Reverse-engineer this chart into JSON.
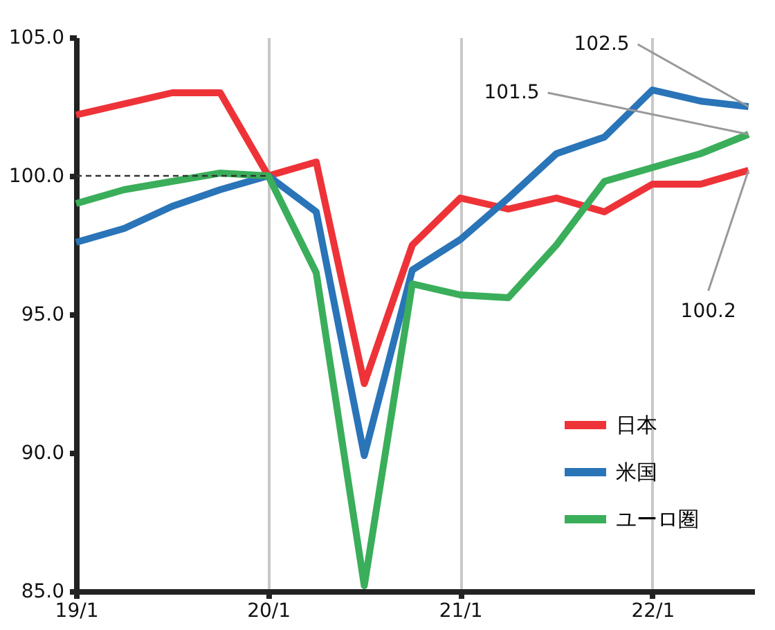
{
  "chart_data": {
    "type": "line",
    "categories": [
      "19/1",
      null,
      null,
      null,
      "20/1",
      null,
      null,
      null,
      "21/1",
      null,
      null,
      null,
      "22/1",
      null,
      null
    ],
    "series": [
      {
        "name": "日本",
        "color": "#ee3338",
        "values": [
          102.2,
          102.6,
          103.0,
          103.0,
          100.0,
          100.5,
          92.5,
          97.5,
          99.2,
          98.8,
          99.2,
          98.7,
          99.7,
          99.7,
          100.2
        ],
        "value_labels": [
          null,
          null,
          null,
          null,
          null,
          null,
          null,
          null,
          null,
          null,
          null,
          null,
          null,
          null,
          "100.2"
        ]
      },
      {
        "name": "米国",
        "color": "#2a74b8",
        "values": [
          97.6,
          98.1,
          98.9,
          99.5,
          100.0,
          98.7,
          89.9,
          96.6,
          97.7,
          99.2,
          100.8,
          101.4,
          103.1,
          102.7,
          102.5
        ],
        "value_labels": [
          null,
          null,
          null,
          null,
          null,
          null,
          null,
          null,
          null,
          null,
          null,
          null,
          null,
          null,
          "102.5"
        ]
      },
      {
        "name": "ユーロ圏",
        "color": "#3aae5a",
        "values": [
          99.0,
          99.5,
          99.8,
          100.1,
          100.0,
          96.5,
          85.2,
          96.1,
          95.7,
          95.6,
          97.5,
          99.8,
          100.3,
          100.8,
          101.5
        ],
        "value_labels": [
          null,
          null,
          null,
          null,
          null,
          null,
          null,
          null,
          null,
          null,
          null,
          null,
          null,
          null,
          "101.5"
        ]
      },
      {
        "color": "#333333",
        "line_style": "dashed",
        "values": [
          100.0,
          100.0,
          100.0,
          100.0,
          100.0,
          null,
          null,
          null,
          null,
          null,
          null,
          null,
          null,
          null,
          null
        ]
      }
    ],
    "ylim": [
      85,
      105
    ],
    "yticks": [
      {
        "value": 85,
        "label": "85.0"
      },
      {
        "value": 90,
        "label": "90.0"
      },
      {
        "value": 95,
        "label": "95.0"
      },
      {
        "value": 100,
        "label": "100.0"
      },
      {
        "value": 105,
        "label": "105.0"
      }
    ],
    "grid": "x",
    "legend": "bottom right",
    "line_style": "solid"
  }
}
